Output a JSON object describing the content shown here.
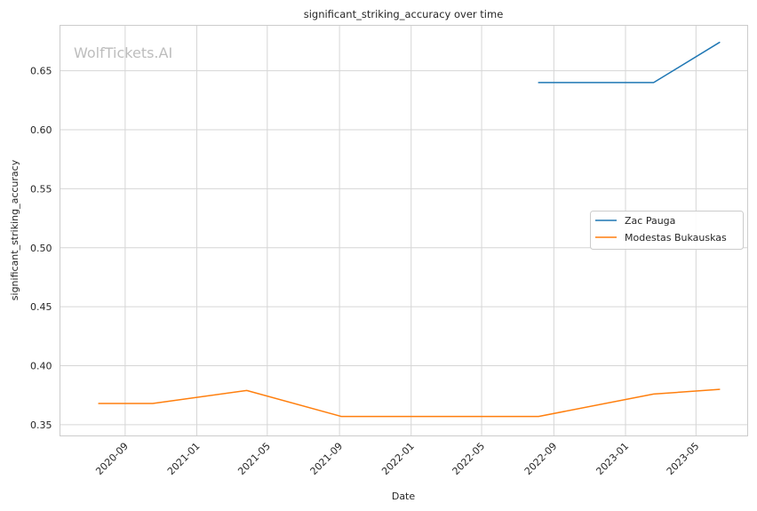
{
  "chart_data": {
    "type": "line",
    "title": "significant_striking_accuracy over time",
    "xlabel": "Date",
    "ylabel": "significant_striking_accuracy",
    "watermark": "WolfTickets.AI",
    "x_axis_type": "date",
    "xlim": [
      "2020-05-13",
      "2023-07-28"
    ],
    "ylim": [
      0.3405,
      0.6885
    ],
    "x_ticks": [
      "2020-09-01",
      "2021-01-01",
      "2021-05-01",
      "2021-09-01",
      "2022-01-01",
      "2022-05-01",
      "2022-09-01",
      "2023-01-01",
      "2023-05-01"
    ],
    "x_tick_labels": [
      "2020-09",
      "2021-01",
      "2021-05",
      "2021-09",
      "2022-01",
      "2022-05",
      "2022-09",
      "2023-01",
      "2023-05"
    ],
    "y_ticks": [
      0.35,
      0.4,
      0.45,
      0.5,
      0.55,
      0.6,
      0.65
    ],
    "y_tick_labels": [
      "0.35",
      "0.40",
      "0.45",
      "0.50",
      "0.55",
      "0.60",
      "0.65"
    ],
    "grid": true,
    "legend_position": "center-right",
    "series": [
      {
        "name": "Zac Pauga",
        "color": "#1f77b4",
        "points": [
          {
            "x": "2022-08-06",
            "y": 0.64
          },
          {
            "x": "2023-02-18",
            "y": 0.64
          },
          {
            "x": "2023-06-10",
            "y": 0.674
          }
        ]
      },
      {
        "name": "Modestas Bukauskas",
        "color": "#ff7f0e",
        "points": [
          {
            "x": "2020-07-18",
            "y": 0.368
          },
          {
            "x": "2020-10-18",
            "y": 0.368
          },
          {
            "x": "2021-03-27",
            "y": 0.379
          },
          {
            "x": "2021-09-04",
            "y": 0.357
          },
          {
            "x": "2022-08-06",
            "y": 0.357
          },
          {
            "x": "2023-02-18",
            "y": 0.376
          },
          {
            "x": "2023-06-10",
            "y": 0.38
          }
        ]
      }
    ]
  }
}
